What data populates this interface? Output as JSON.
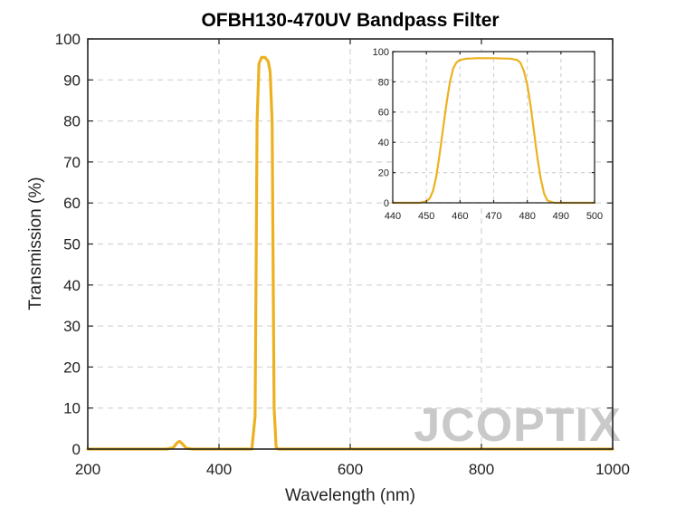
{
  "chart_data": [
    {
      "type": "line",
      "title": "OFBH130-470UV Bandpass Filter",
      "xlabel": "Wavelength (nm)",
      "ylabel": "Transmission (%)",
      "xlim": [
        200,
        1000
      ],
      "ylim": [
        0,
        100
      ],
      "xticks": [
        "200",
        "400",
        "600",
        "800",
        "1000"
      ],
      "yticks": [
        "0",
        "10",
        "20",
        "30",
        "40",
        "50",
        "60",
        "70",
        "80",
        "90",
        "100"
      ],
      "grid": true,
      "line_color": "#EDB120",
      "x": [
        200,
        320,
        330,
        336,
        340,
        344,
        350,
        360,
        440,
        450,
        455,
        458,
        461,
        465,
        470,
        475,
        478,
        481,
        484,
        487,
        490,
        500,
        600,
        800,
        1000
      ],
      "y": [
        0,
        0,
        0.3,
        1.5,
        1.9,
        1.3,
        0.2,
        0,
        0,
        0,
        8,
        80,
        94,
        95.5,
        95.5,
        94.5,
        92,
        80,
        10,
        0.5,
        0,
        0,
        0,
        0,
        0
      ]
    },
    {
      "type": "line",
      "title": "",
      "xlabel": "",
      "ylabel": "",
      "xlim": [
        440,
        500
      ],
      "ylim": [
        0,
        100
      ],
      "xticks": [
        "440",
        "450",
        "460",
        "470",
        "480",
        "490",
        "500"
      ],
      "yticks": [
        "0",
        "20",
        "40",
        "60",
        "80",
        "100"
      ],
      "grid": true,
      "line_color": "#EDB120",
      "x": [
        440,
        448,
        450,
        451,
        452,
        453,
        454,
        455,
        456,
        457,
        458,
        459,
        460,
        462,
        465,
        470,
        475,
        477,
        478,
        479,
        480,
        481,
        482,
        483,
        484,
        485,
        486,
        488,
        490,
        500
      ],
      "y": [
        0,
        0,
        1,
        3,
        8,
        18,
        33,
        50,
        66,
        80,
        89,
        93,
        94.5,
        95.3,
        95.6,
        95.6,
        95.3,
        94.5,
        92.5,
        87,
        78,
        64,
        47,
        30,
        16,
        6,
        1.5,
        0,
        0,
        0
      ]
    }
  ],
  "watermark": {
    "text": "JCOPTIX",
    "color": "#c9c9c9"
  }
}
